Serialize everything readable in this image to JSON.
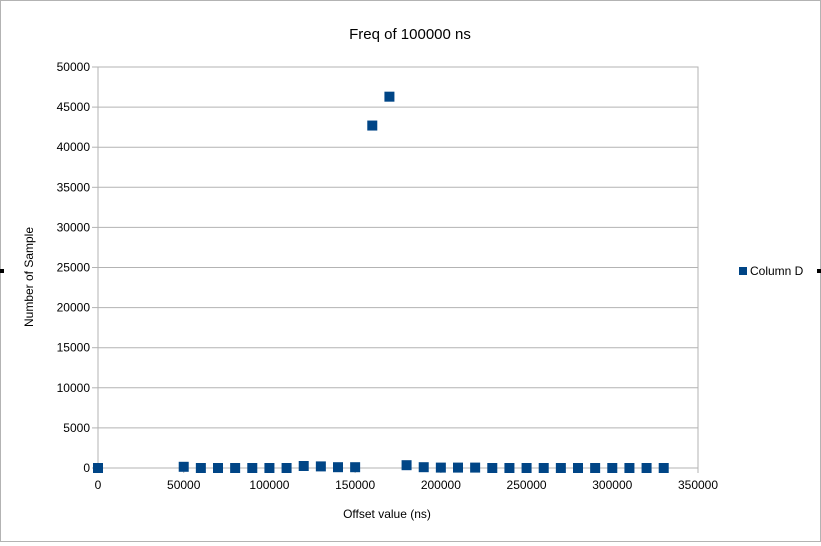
{
  "chart_data": {
    "type": "scatter",
    "title": "Freq of 100000 ns",
    "xlabel": "Offset value (ns)",
    "ylabel": "Number of Sample",
    "xlim": [
      0,
      350000
    ],
    "ylim": [
      0,
      50000
    ],
    "xticks": [
      0,
      50000,
      100000,
      150000,
      200000,
      250000,
      300000,
      350000
    ],
    "yticks": [
      0,
      5000,
      10000,
      15000,
      20000,
      25000,
      30000,
      35000,
      40000,
      45000,
      50000
    ],
    "grid": "horizontal",
    "legend_position": "right",
    "marker": "square",
    "series": [
      {
        "name": "Column D",
        "color": "#004586",
        "points": [
          [
            0,
            0
          ],
          [
            50000,
            150
          ],
          [
            60000,
            0
          ],
          [
            70000,
            0
          ],
          [
            80000,
            0
          ],
          [
            90000,
            0
          ],
          [
            100000,
            0
          ],
          [
            110000,
            0
          ],
          [
            120000,
            250
          ],
          [
            130000,
            200
          ],
          [
            140000,
            100
          ],
          [
            150000,
            100
          ],
          [
            160000,
            42700
          ],
          [
            170000,
            46300
          ],
          [
            180000,
            350
          ],
          [
            190000,
            100
          ],
          [
            200000,
            50
          ],
          [
            210000,
            50
          ],
          [
            220000,
            50
          ],
          [
            230000,
            0
          ],
          [
            240000,
            0
          ],
          [
            250000,
            0
          ],
          [
            260000,
            0
          ],
          [
            270000,
            0
          ],
          [
            280000,
            0
          ],
          [
            290000,
            0
          ],
          [
            300000,
            0
          ],
          [
            310000,
            0
          ],
          [
            320000,
            0
          ],
          [
            330000,
            0
          ]
        ]
      }
    ]
  }
}
